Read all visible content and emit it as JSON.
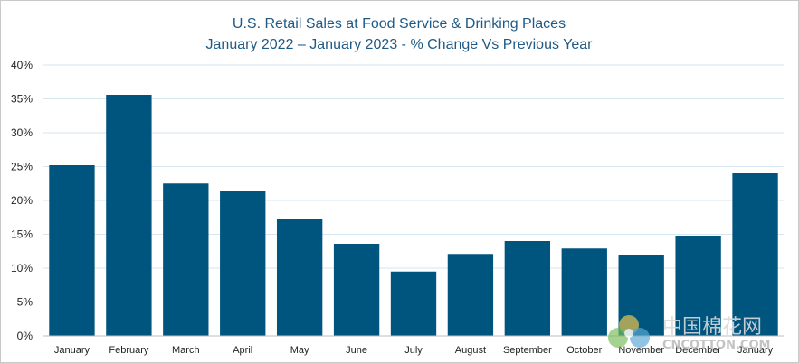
{
  "chart_data": {
    "type": "bar",
    "title": "U.S. Retail Sales at Food Service & Drinking Places",
    "subtitle": "January 2022 – January 2023 - % Change Vs Previous Year",
    "xlabel": "",
    "ylabel": "",
    "categories": [
      "January",
      "February",
      "March",
      "April",
      "May",
      "June",
      "July",
      "August",
      "September",
      "October",
      "November",
      "December",
      "January"
    ],
    "values": [
      25.2,
      35.6,
      22.5,
      21.4,
      17.2,
      13.6,
      9.5,
      12.1,
      14.0,
      12.9,
      12.0,
      14.8,
      24.0
    ],
    "ylim": [
      0,
      40
    ],
    "yticks": [
      0,
      5,
      10,
      15,
      20,
      25,
      30,
      35,
      40
    ],
    "ytick_labels": [
      "0%",
      "5%",
      "10%",
      "15%",
      "20%",
      "25%",
      "30%",
      "35%",
      "40%"
    ],
    "grid": true,
    "legend": "none",
    "bar_color": "#00557f"
  },
  "watermark": {
    "cn_text": "中国棉花网",
    "en_text": "CNCOTTON.COM",
    "logo": "cncotton-logo-icon"
  }
}
